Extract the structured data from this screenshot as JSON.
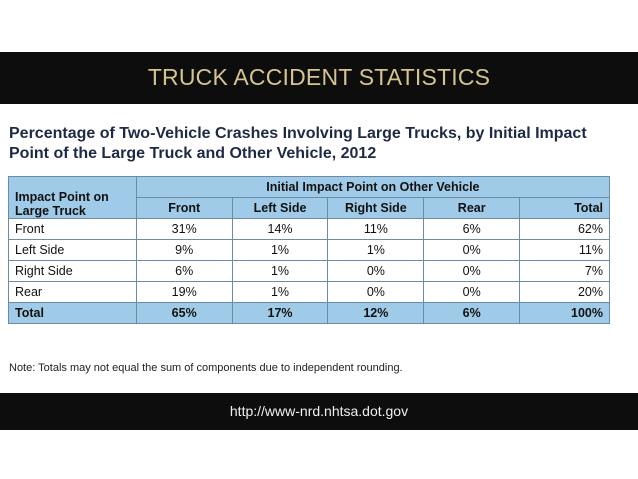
{
  "header": {
    "title": "TRUCK ACCIDENT STATISTICS"
  },
  "subtitle": {
    "line1": "Percentage of Two-Vehicle Crashes Involving Large Trucks, by Initial Impact",
    "line2": "Point of the Large Truck and Other Vehicle, 2012"
  },
  "table": {
    "corner_line1": "Impact Point on",
    "corner_line2": "Large Truck",
    "group_header": "Initial Impact Point on Other Vehicle",
    "columns": [
      "Front",
      "Left Side",
      "Right Side",
      "Rear",
      "Total"
    ],
    "rows": [
      {
        "label": "Front",
        "values": [
          "31%",
          "14%",
          "11%",
          "6%",
          "62%"
        ]
      },
      {
        "label": "Left Side",
        "values": [
          "9%",
          "1%",
          "1%",
          "0%",
          "11%"
        ]
      },
      {
        "label": "Right Side",
        "values": [
          "6%",
          "1%",
          "0%",
          "0%",
          "7%"
        ]
      },
      {
        "label": "Rear",
        "values": [
          "19%",
          "1%",
          "0%",
          "0%",
          "20%"
        ]
      }
    ],
    "total_row": {
      "label": "Total",
      "values": [
        "65%",
        "17%",
        "12%",
        "6%",
        "100%"
      ]
    }
  },
  "note": "Note: Totals may not equal the sum of components due to independent rounding.",
  "footer": {
    "url": "http://www-nrd.nhtsa.dot.gov"
  },
  "colors": {
    "band": "#0d0d0d",
    "header_gold": "#d6c48e",
    "table_header_blue": "#9fcbe8"
  }
}
